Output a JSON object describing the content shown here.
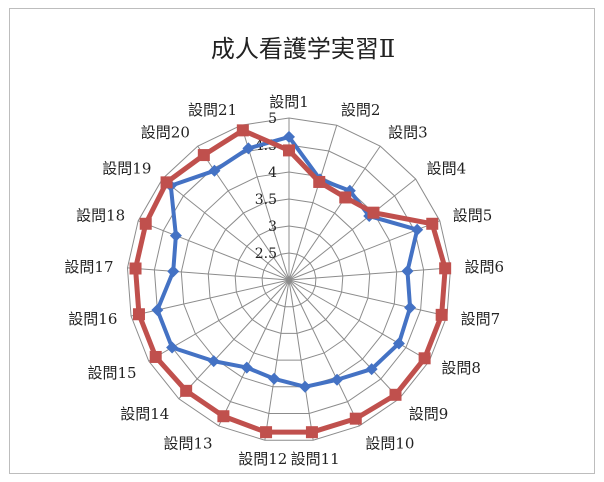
{
  "chart_data": {
    "type": "radar",
    "title": "成人看護学実習Ⅱ",
    "categories": [
      "設問1",
      "設問2",
      "設問3",
      "設問4",
      "設問5",
      "設問6",
      "設問7",
      "設問8",
      "設問9",
      "設問10",
      "設問11",
      "設問12",
      "設問13",
      "設問14",
      "設問15",
      "設問16",
      "設問17",
      "設問18",
      "設問19",
      "設問20",
      "設問21"
    ],
    "rlim": [
      2,
      5
    ],
    "rticks": [
      "2.5",
      "3",
      "3.5",
      "4",
      "4.5",
      "5"
    ],
    "rtick_values": [
      2.5,
      3,
      3.5,
      4,
      4.5,
      5
    ],
    "series": [
      {
        "color": "#4472c4",
        "marker": "diamond",
        "values": [
          4.65,
          3.95,
          4.0,
          3.9,
          4.55,
          4.2,
          4.3,
          4.35,
          4.25,
          4.05,
          4.0,
          3.85,
          3.8,
          4.05,
          4.5,
          4.5,
          4.15,
          4.25,
          4.8,
          4.45,
          4.55
        ]
      },
      {
        "color": "#c0504d",
        "marker": "square",
        "values": [
          4.4,
          3.9,
          3.85,
          4.0,
          4.85,
          4.9,
          4.9,
          4.9,
          4.9,
          4.85,
          4.85,
          4.85,
          4.8,
          4.8,
          4.85,
          4.85,
          4.85,
          4.85,
          4.9,
          4.8,
          4.9
        ]
      }
    ],
    "grid": true,
    "legend": "none"
  }
}
